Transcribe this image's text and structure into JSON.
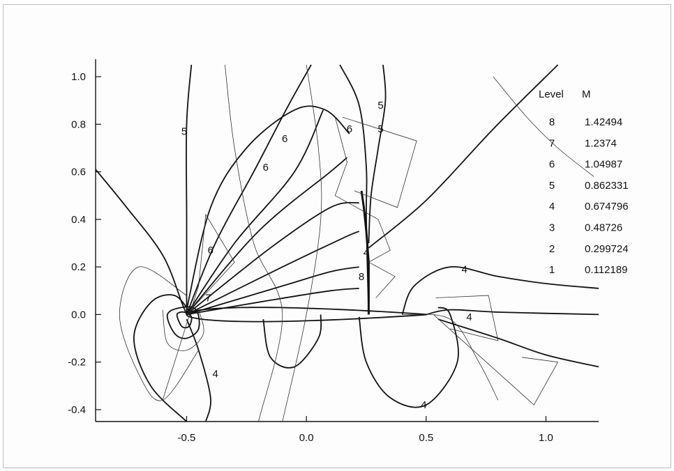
{
  "chart_data": {
    "type": "contour",
    "title": "",
    "xlabel": "",
    "ylabel": "",
    "xlim": [
      -0.88,
      1.22
    ],
    "ylim": [
      -0.45,
      1.05
    ],
    "x_ticks": [
      "-0.5",
      "0.0",
      "0.5",
      "1.0"
    ],
    "y_ticks": [
      "1.0",
      "0.8",
      "0.6",
      "0.4",
      "0.2",
      "0.0",
      "-0.2",
      "-0.4"
    ],
    "legend": {
      "headers": [
        "Level",
        "M"
      ],
      "levels": [
        {
          "level": "8",
          "m": "1.42494"
        },
        {
          "level": "7",
          "m": "1.2374"
        },
        {
          "level": "6",
          "m": "1.04987"
        },
        {
          "level": "5",
          "m": "0.862331"
        },
        {
          "level": "4",
          "m": "0.674796"
        },
        {
          "level": "3",
          "m": "0.48726"
        },
        {
          "level": "2",
          "m": "0.299724"
        },
        {
          "level": "1",
          "m": "0.112189"
        }
      ]
    },
    "contour_labels": [
      {
        "text": "5",
        "x": -0.51,
        "y": 0.77
      },
      {
        "text": "6",
        "x": -0.09,
        "y": 0.74
      },
      {
        "text": "6",
        "x": -0.17,
        "y": 0.62
      },
      {
        "text": "6",
        "x": -0.4,
        "y": 0.27
      },
      {
        "text": "7",
        "x": -0.41,
        "y": 0.07
      },
      {
        "text": "6",
        "x": 0.18,
        "y": 0.78
      },
      {
        "text": "5",
        "x": 0.31,
        "y": 0.88
      },
      {
        "text": "5",
        "x": 0.31,
        "y": 0.78
      },
      {
        "text": "4",
        "x": 0.25,
        "y": 0.26
      },
      {
        "text": "8",
        "x": 0.23,
        "y": 0.16
      },
      {
        "text": "4",
        "x": 0.66,
        "y": 0.19
      },
      {
        "text": "4",
        "x": 0.68,
        "y": -0.01
      },
      {
        "text": "4",
        "x": -0.38,
        "y": -0.25
      },
      {
        "text": "4",
        "x": 0.49,
        "y": -0.38
      }
    ],
    "airfoil": {
      "leading_edge_x": -0.5,
      "trailing_edge_x": 0.5,
      "max_thickness": 0.06
    }
  }
}
